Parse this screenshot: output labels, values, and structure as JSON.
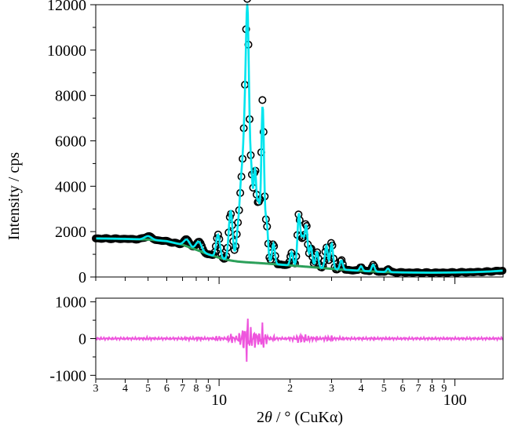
{
  "chart_data": [
    {
      "type": "scatter",
      "panel": "main",
      "xlabel_parts": [
        "2",
        "θ",
        " / ° (CuKα)"
      ],
      "ylabel": "Intensity / cps",
      "x_scale": "log",
      "xlim": [
        3,
        160
      ],
      "ylim": [
        0,
        12000
      ],
      "y_ticks": [
        0,
        2000,
        4000,
        6000,
        8000,
        10000,
        12000
      ],
      "x_major_ticks": [
        10,
        100
      ],
      "x_major_labels": [
        "10",
        "100"
      ],
      "x_minor_ticks": [
        3,
        4,
        5,
        6,
        7,
        8,
        9,
        20,
        30,
        40,
        50,
        60,
        70,
        80,
        90
      ],
      "x_minor_labels": [
        "3",
        "4",
        "5",
        "6",
        "7",
        "8",
        "9",
        "2",
        "3",
        "4",
        "5",
        "6",
        "7",
        "8",
        "9"
      ],
      "grid": false,
      "colors": {
        "observed": "#000000",
        "calculated": "#00e5ee",
        "background": "#2ca05a"
      },
      "background_curve": {
        "x": [
          3,
          4,
          5,
          6,
          7,
          8,
          9,
          10,
          11,
          12,
          13,
          14,
          15,
          16,
          18,
          20,
          25,
          30,
          40,
          50,
          60,
          80,
          100,
          120,
          140,
          160
        ],
        "y": [
          1700,
          1680,
          1650,
          1580,
          1420,
          1200,
          1000,
          850,
          740,
          680,
          650,
          630,
          610,
          590,
          550,
          510,
          430,
          360,
          270,
          220,
          200,
          190,
          200,
          215,
          240,
          280
        ]
      },
      "peaks": [
        {
          "x": 5.0,
          "height": 150,
          "width": 0.015
        },
        {
          "x": 7.3,
          "height": 300,
          "width": 0.012
        },
        {
          "x": 8.2,
          "height": 400,
          "width": 0.012
        },
        {
          "x": 9.9,
          "height": 1000,
          "width": 0.008
        },
        {
          "x": 11.2,
          "height": 2200,
          "width": 0.008
        },
        {
          "x": 12.0,
          "height": 1200,
          "width": 0.007
        },
        {
          "x": 12.4,
          "height": 3000,
          "width": 0.007
        },
        {
          "x": 12.8,
          "height": 4500,
          "width": 0.007
        },
        {
          "x": 13.2,
          "height": 10500,
          "width": 0.007
        },
        {
          "x": 13.7,
          "height": 3500,
          "width": 0.006
        },
        {
          "x": 14.2,
          "height": 4000,
          "width": 0.006
        },
        {
          "x": 14.7,
          "height": 2500,
          "width": 0.006
        },
        {
          "x": 15.3,
          "height": 6900,
          "width": 0.006
        },
        {
          "x": 15.9,
          "height": 1800,
          "width": 0.006
        },
        {
          "x": 17.0,
          "height": 900,
          "width": 0.006
        },
        {
          "x": 20.3,
          "height": 600,
          "width": 0.006
        },
        {
          "x": 21.8,
          "height": 2300,
          "width": 0.006
        },
        {
          "x": 22.6,
          "height": 1200,
          "width": 0.006
        },
        {
          "x": 23.4,
          "height": 1800,
          "width": 0.006
        },
        {
          "x": 24.5,
          "height": 900,
          "width": 0.006
        },
        {
          "x": 26.0,
          "height": 700,
          "width": 0.006
        },
        {
          "x": 28.5,
          "height": 1000,
          "width": 0.006
        },
        {
          "x": 30.0,
          "height": 1100,
          "width": 0.006
        },
        {
          "x": 33.0,
          "height": 400,
          "width": 0.006
        },
        {
          "x": 40.0,
          "height": 200,
          "width": 0.006
        },
        {
          "x": 45.0,
          "height": 300,
          "width": 0.006
        },
        {
          "x": 52.0,
          "height": 150,
          "width": 0.006
        }
      ]
    },
    {
      "type": "line",
      "panel": "difference",
      "x_scale": "log",
      "xlim": [
        3,
        160
      ],
      "ylim": [
        -1100,
        1100
      ],
      "y_ticks": [
        -1000,
        0,
        1000
      ],
      "colors": {
        "difference": "#ee55dd"
      },
      "grid": false
    }
  ]
}
